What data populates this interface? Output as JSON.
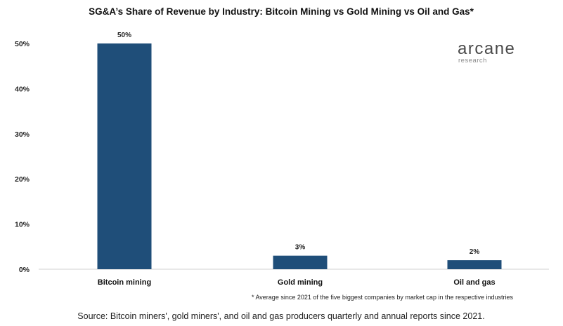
{
  "chart_data": {
    "type": "bar",
    "title": "SG&A’s Share of Revenue by Industry: Bitcoin Mining vs Gold Mining vs Oil and Gas*",
    "categories": [
      "Bitcoin mining",
      "Gold mining",
      "Oil and gas"
    ],
    "values": [
      50,
      3,
      2
    ],
    "value_labels": [
      "50%",
      "3%",
      "2%"
    ],
    "ylim": [
      0,
      50
    ],
    "yticks": [
      0,
      10,
      20,
      30,
      40,
      50
    ],
    "ytick_labels": [
      "0%",
      "10%",
      "20%",
      "30%",
      "40%",
      "50%"
    ],
    "xlabel": "",
    "ylabel": "",
    "grid": false,
    "bar_color": "#1f4e79",
    "footnote": "* Average since 2021 of the five biggest companies by market cap in the respective industries"
  },
  "logo": {
    "name": "arcane",
    "sub": "research"
  },
  "source": "Source: Bitcoin miners', gold miners', and oil and gas producers quarterly and annual reports since 2021."
}
